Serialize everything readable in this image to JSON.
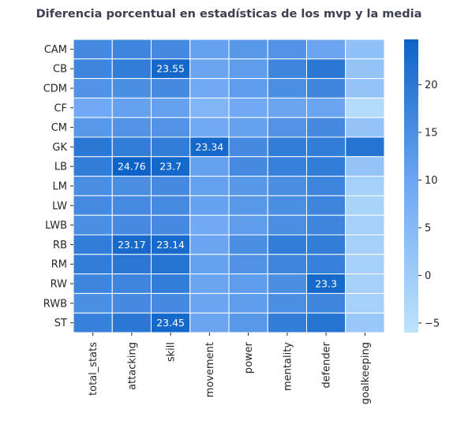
{
  "chart_data": {
    "type": "heatmap",
    "title": "Diferencia porcentual en estadísticas de los mvp y la media",
    "xlabel": "",
    "ylabel": "",
    "columns": [
      "total_stats",
      "attacking",
      "skill",
      "movement",
      "power",
      "mentality",
      "defender",
      "goalkeeping"
    ],
    "rows": [
      "CAM",
      "CB",
      "CDM",
      "CF",
      "CM",
      "GK",
      "LB",
      "LM",
      "LW",
      "LWB",
      "RB",
      "RM",
      "RW",
      "RWB",
      "ST"
    ],
    "values": [
      [
        16,
        17,
        16,
        11,
        13,
        14,
        10,
        3
      ],
      [
        17,
        19,
        23.55,
        10,
        12,
        17,
        20,
        2
      ],
      [
        14,
        15,
        16,
        9,
        12,
        15,
        17,
        2
      ],
      [
        9,
        11,
        11,
        6,
        9,
        10,
        10,
        -4
      ],
      [
        13,
        14,
        14,
        9,
        11,
        14,
        16,
        2
      ],
      [
        20,
        19,
        19,
        23.34,
        16,
        19,
        19,
        21
      ],
      [
        19,
        24.76,
        23.7,
        11,
        16,
        18,
        19,
        2
      ],
      [
        15,
        15,
        16,
        11,
        13,
        15,
        17,
        -1
      ],
      [
        16,
        16,
        16,
        11,
        13,
        15,
        17,
        -2
      ],
      [
        15,
        16,
        16,
        9,
        12,
        15,
        17,
        -1
      ],
      [
        19,
        23.17,
        23.14,
        10,
        15,
        19,
        19,
        -1
      ],
      [
        19,
        20,
        21,
        11,
        14,
        17,
        18,
        -1
      ],
      [
        17,
        17,
        19,
        10,
        12,
        15,
        23.3,
        -1
      ],
      [
        15,
        16,
        16,
        10,
        12,
        15,
        17,
        -1
      ],
      [
        18,
        20,
        23.45,
        10,
        13,
        19,
        21,
        1
      ]
    ],
    "annotations": [
      {
        "row": "CB",
        "column": "skill",
        "label": "23.55"
      },
      {
        "row": "GK",
        "column": "movement",
        "label": "23.34"
      },
      {
        "row": "LB",
        "column": "attacking",
        "label": "24.76"
      },
      {
        "row": "LB",
        "column": "skill",
        "label": "23.7"
      },
      {
        "row": "RB",
        "column": "attacking",
        "label": "23.17"
      },
      {
        "row": "RB",
        "column": "skill",
        "label": "23.14"
      },
      {
        "row": "RW",
        "column": "defender",
        "label": "23.3"
      },
      {
        "row": "ST",
        "column": "skill",
        "label": "23.45"
      }
    ],
    "colorbar": {
      "range": [
        -6,
        24.76
      ],
      "ticks": [
        "−5",
        "0",
        "5",
        "10",
        "15",
        "20"
      ],
      "tick_values": [
        -5,
        0,
        5,
        10,
        15,
        20
      ],
      "color_low": "#bde3fb",
      "color_mid": "#6fa8f4",
      "color_high": "#0d63c6"
    },
    "grid_line_color": "#ffffff",
    "title_color": "#3d4050"
  }
}
